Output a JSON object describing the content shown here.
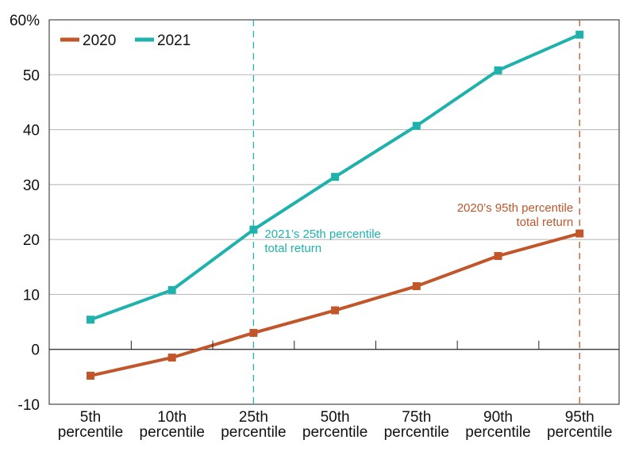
{
  "chart_data": {
    "type": "line",
    "categories": [
      "5th\npercentile",
      "10th\npercentile",
      "25th\npercentile",
      "50th\npercentile",
      "75th\npercentile",
      "90th\npercentile",
      "95th\npercentile"
    ],
    "series": [
      {
        "name": "2020",
        "color": "#c0562a",
        "values": [
          -4.8,
          -1.5,
          3.0,
          7.1,
          11.5,
          17.0,
          21.1
        ]
      },
      {
        "name": "2021",
        "color": "#1fb2ad",
        "values": [
          5.4,
          10.8,
          21.8,
          31.4,
          40.7,
          50.8,
          57.3
        ]
      }
    ],
    "y_ticks": [
      "60%",
      "50",
      "40",
      "30",
      "20",
      "10",
      "0",
      "-10"
    ],
    "ylim": [
      -10,
      60
    ],
    "grid": true,
    "legend_position": "top-left",
    "annotations": [
      {
        "lines": [
          "2021’s 25th percentile",
          "total return"
        ],
        "color": "#1fb2ad",
        "category_index": 2,
        "series": "2021"
      },
      {
        "lines": [
          "2020’s 95th percentile",
          "total return"
        ],
        "color": "#c0562a",
        "category_index": 6,
        "series": "2020"
      }
    ]
  }
}
